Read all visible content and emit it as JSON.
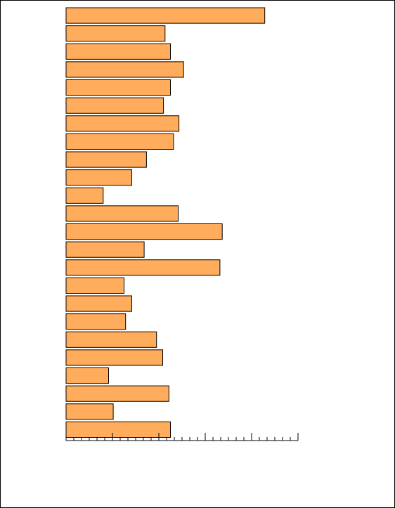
{
  "chart_data": {
    "type": "barh",
    "categories": [
      null,
      null,
      null,
      null,
      null,
      null,
      null,
      null,
      null,
      null,
      null,
      null,
      null,
      null,
      null,
      null,
      null,
      null,
      null,
      null,
      null,
      null,
      null,
      null
    ],
    "values": [
      25.7,
      12.8,
      13.5,
      15.2,
      13.5,
      12.6,
      14.6,
      13.9,
      10.4,
      8.5,
      4.8,
      14.5,
      20.2,
      10.1,
      19.9,
      7.5,
      8.5,
      7.7,
      11.7,
      12.5,
      5.5,
      13.3,
      6.1,
      13.5
    ],
    "color": "#ffad5c",
    "xlim": [
      0,
      30
    ],
    "xticks": [
      0,
      6,
      12,
      18,
      24,
      30
    ],
    "xticks_minor": [
      0,
      1,
      2,
      3,
      4,
      5,
      6,
      7,
      8,
      9,
      10,
      11,
      12,
      13,
      14,
      15,
      16,
      17,
      18,
      19,
      20,
      21,
      22,
      23,
      24,
      25,
      26,
      27,
      28,
      29,
      30
    ]
  }
}
